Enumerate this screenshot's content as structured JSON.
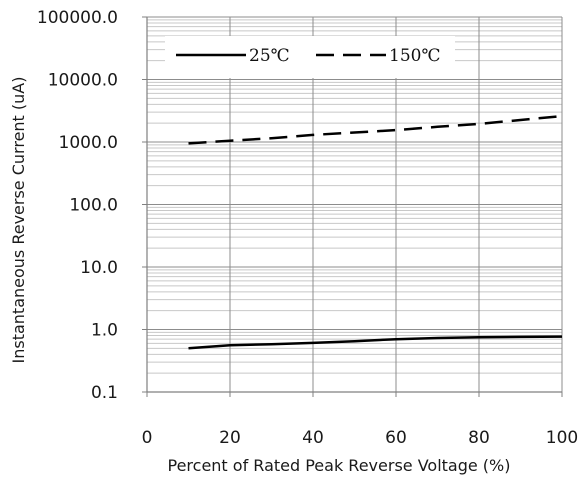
{
  "chart_data": {
    "type": "line",
    "title": "",
    "xlabel": "Percent of  Rated  Peak Reverse Voltage (%)",
    "ylabel": "Instantaneous Reverse Current (uA)",
    "x_ticks": [
      0,
      20,
      40,
      60,
      80,
      100
    ],
    "x_tick_labels": [
      "0",
      "20",
      "40",
      "60",
      "80",
      "100"
    ],
    "xlim": [
      0,
      100
    ],
    "y_scale": "log",
    "ylim": [
      0.1,
      100000
    ],
    "y_ticks": [
      0.1,
      1,
      10,
      100,
      1000,
      10000,
      100000
    ],
    "y_tick_labels": [
      "0.1",
      "1.0",
      "10.0",
      "100.0",
      "1000.0",
      "10000.0",
      "100000.0"
    ],
    "grid": true,
    "legend_position": "top-left",
    "series": [
      {
        "name": "25℃",
        "line_style": "solid",
        "x": [
          10,
          20,
          30,
          40,
          50,
          60,
          70,
          80,
          90,
          100
        ],
        "values": [
          0.5,
          0.56,
          0.58,
          0.61,
          0.65,
          0.7,
          0.73,
          0.75,
          0.76,
          0.77
        ]
      },
      {
        "name": "150℃",
        "line_style": "dashed",
        "x": [
          10,
          20,
          30,
          40,
          50,
          60,
          70,
          80,
          90,
          100
        ],
        "values": [
          950,
          1050,
          1150,
          1300,
          1420,
          1550,
          1750,
          1950,
          2250,
          2600
        ]
      }
    ],
    "colors": {
      "line": "#000000",
      "major_grid": "#8c8c8c",
      "minor_grid": "#c8c8c8",
      "axis": "#808080"
    }
  }
}
